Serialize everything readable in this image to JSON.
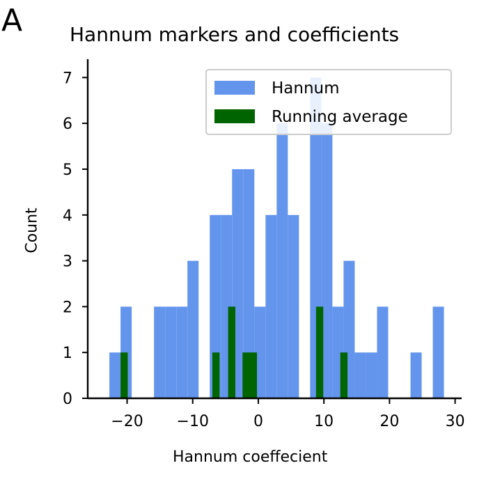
{
  "panel_label": "A",
  "colors": {
    "hannum": "#6495ed",
    "running_average": "#006400",
    "axis": "#000000"
  },
  "chart_data": {
    "type": "bar",
    "title": "Hannum markers and coefficients",
    "xlabel": "Hannum coeffecient",
    "ylabel": "Count",
    "xlim": [
      -26,
      31
    ],
    "ylim": [
      0,
      7.4
    ],
    "xticks": [
      -20,
      -10,
      0,
      10,
      20,
      30
    ],
    "xtick_labels": [
      "−20",
      "−10",
      "0",
      "10",
      "20",
      "30"
    ],
    "yticks": [
      0,
      1,
      2,
      3,
      4,
      5,
      6,
      7
    ],
    "legend": {
      "position": "top-right"
    },
    "series": [
      {
        "name": "Hannum",
        "bins": [
          {
            "x0": -22.7,
            "x1": -21.0,
            "count": 1
          },
          {
            "x0": -21.0,
            "x1": -19.3,
            "count": 2
          },
          {
            "x0": -15.9,
            "x1": -14.2,
            "count": 2
          },
          {
            "x0": -14.2,
            "x1": -12.5,
            "count": 2
          },
          {
            "x0": -12.5,
            "x1": -10.8,
            "count": 2
          },
          {
            "x0": -10.8,
            "x1": -9.1,
            "count": 3
          },
          {
            "x0": -7.4,
            "x1": -5.7,
            "count": 4
          },
          {
            "x0": -5.7,
            "x1": -4.0,
            "count": 4
          },
          {
            "x0": -4.0,
            "x1": -2.3,
            "count": 5
          },
          {
            "x0": -2.3,
            "x1": -0.6,
            "count": 5
          },
          {
            "x0": -0.6,
            "x1": 1.1,
            "count": 2
          },
          {
            "x0": 1.1,
            "x1": 2.8,
            "count": 4
          },
          {
            "x0": 2.8,
            "x1": 4.5,
            "count": 6
          },
          {
            "x0": 4.5,
            "x1": 6.2,
            "count": 4
          },
          {
            "x0": 7.9,
            "x1": 9.6,
            "count": 7
          },
          {
            "x0": 9.6,
            "x1": 11.3,
            "count": 6
          },
          {
            "x0": 11.3,
            "x1": 13.0,
            "count": 2
          },
          {
            "x0": 13.0,
            "x1": 14.7,
            "count": 3
          },
          {
            "x0": 14.7,
            "x1": 16.4,
            "count": 1
          },
          {
            "x0": 16.4,
            "x1": 18.1,
            "count": 1
          },
          {
            "x0": 18.1,
            "x1": 19.8,
            "count": 2
          },
          {
            "x0": 23.2,
            "x1": 24.9,
            "count": 1
          },
          {
            "x0": 26.6,
            "x1": 28.3,
            "count": 2
          }
        ]
      },
      {
        "name": "Running average",
        "bins": [
          {
            "x0": -21.0,
            "x1": -19.9,
            "count": 1
          },
          {
            "x0": -7.0,
            "x1": -5.9,
            "count": 1
          },
          {
            "x0": -4.6,
            "x1": -3.5,
            "count": 2
          },
          {
            "x0": -2.4,
            "x1": -0.2,
            "count": 1
          },
          {
            "x0": 8.8,
            "x1": 9.9,
            "count": 2
          },
          {
            "x0": 12.5,
            "x1": 13.6,
            "count": 1
          }
        ]
      }
    ]
  }
}
